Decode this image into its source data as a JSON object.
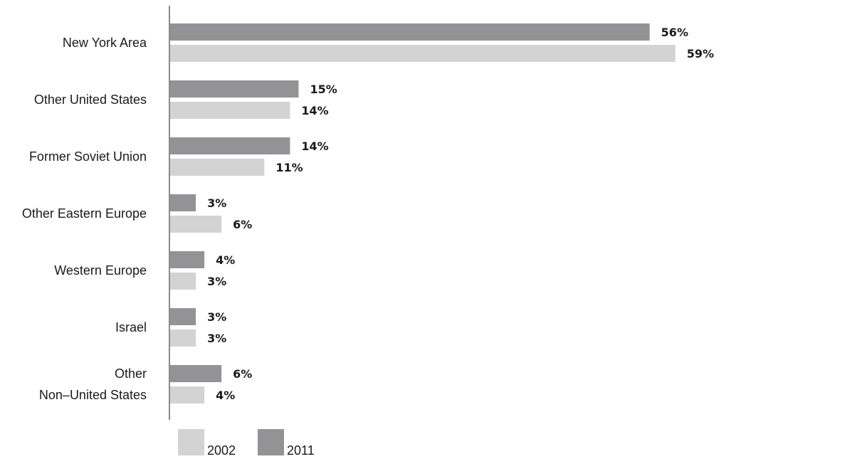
{
  "chart_data": {
    "type": "bar",
    "orientation": "horizontal",
    "categories": [
      [
        "New York Area"
      ],
      [
        "Other United States"
      ],
      [
        "Former Soviet Union"
      ],
      [
        "Other Eastern Europe"
      ],
      [
        "Western Europe"
      ],
      [
        "Israel"
      ],
      [
        "Other",
        "Non–United States"
      ]
    ],
    "series": [
      {
        "name": "2011",
        "color": "#939396",
        "values": [
          56,
          15,
          14,
          3,
          4,
          3,
          6
        ],
        "labels": [
          "56%",
          "15%",
          "14%",
          "3%",
          "4%",
          "3%",
          "6%"
        ]
      },
      {
        "name": "2002",
        "color": "#d3d3d4",
        "values": [
          59,
          14,
          11,
          6,
          3,
          3,
          4
        ],
        "labels": [
          "59%",
          "14%",
          "11%",
          "6%",
          "3%",
          "3%",
          "4%"
        ]
      }
    ],
    "legend": [
      {
        "name": "2002",
        "color": "#d3d3d4"
      },
      {
        "name": "2011",
        "color": "#939396"
      }
    ],
    "legend_position": "bottom-left",
    "xlim": [
      0,
      100
    ],
    "unit": "%",
    "grid": false,
    "axis_color": "#8a8a8a"
  }
}
